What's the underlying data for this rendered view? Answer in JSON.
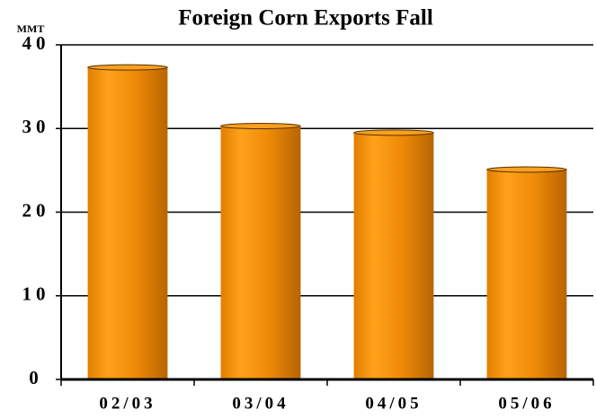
{
  "chart_data": {
    "type": "bar",
    "title": "Foreign Corn Exports Fall",
    "y_label": "MMT",
    "categories": [
      "02/03",
      "03/04",
      "04/05",
      "05/06"
    ],
    "values": [
      37.3,
      30.3,
      29.5,
      25.1
    ],
    "color": "#f39a10",
    "ylim": [
      0,
      40
    ],
    "yticks": [
      0,
      10,
      20,
      30,
      40
    ],
    "grid": true
  }
}
